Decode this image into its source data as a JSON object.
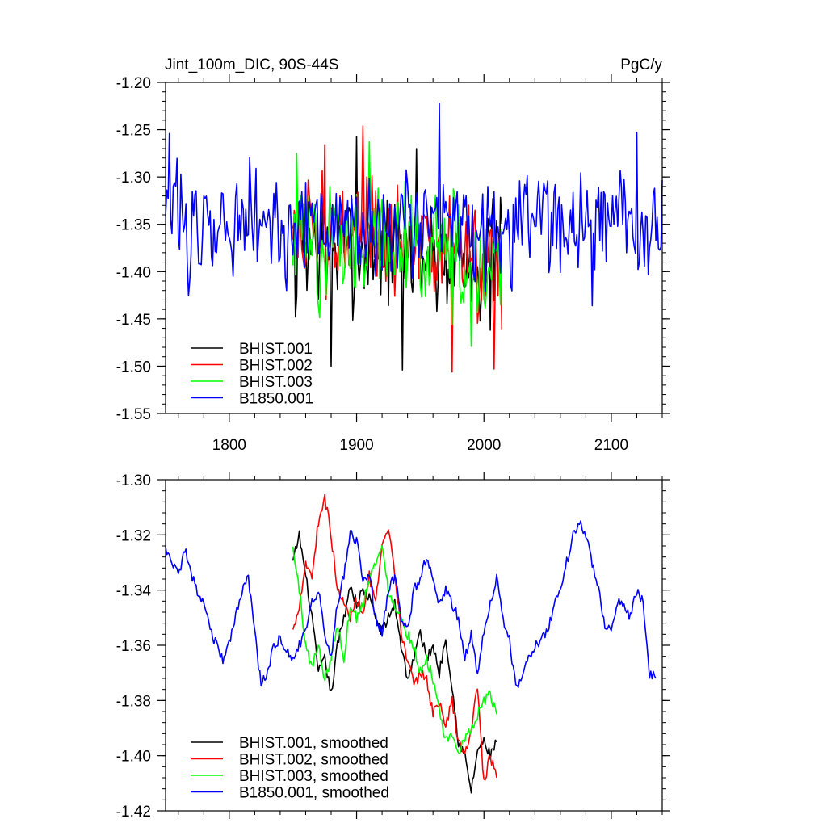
{
  "chart_data": [
    {
      "type": "line",
      "title": "Jint_100m_DIC, 90S-44S",
      "units": "PgC/y",
      "xlim": [
        1750,
        2140
      ],
      "ylim": [
        -1.55,
        -1.2
      ],
      "xticks": [
        1800,
        1900,
        2000,
        2100
      ],
      "xtick_labels": [
        "1800",
        "1900",
        "2000",
        "2100"
      ],
      "yticks": [
        -1.55,
        -1.5,
        -1.45,
        -1.4,
        -1.35,
        -1.3,
        -1.25,
        -1.2
      ],
      "ytick_labels": [
        "-1.55",
        "-1.50",
        "-1.45",
        "-1.40",
        "-1.35",
        "-1.30",
        "-1.25",
        "-1.20"
      ],
      "legend_position": "bottom-left",
      "series": [
        {
          "name": "BHIST.001",
          "color": "#000000",
          "x_start": 1850,
          "x_end": 2014,
          "mean": -1.37,
          "amplitude": 0.04,
          "trend": -0.02,
          "extremes": [
            [
              1852,
              -1.448
            ],
            [
              1880,
              -1.5
            ],
            [
              1900,
              -1.257
            ],
            [
              1936,
              -1.504
            ],
            [
              1947,
              -1.27
            ],
            [
              2005,
              -1.462
            ]
          ]
        },
        {
          "name": "BHIST.002",
          "color": "#ff0000",
          "x_start": 1850,
          "x_end": 2014,
          "mean": -1.36,
          "amplitude": 0.04,
          "trend": -0.025,
          "extremes": [
            [
              1875,
              -1.266
            ],
            [
              1905,
              -1.246
            ],
            [
              1975,
              -1.506
            ],
            [
              2008,
              -1.503
            ],
            [
              2014,
              -1.461
            ]
          ]
        },
        {
          "name": "BHIST.003",
          "color": "#00ff00",
          "x_start": 1850,
          "x_end": 2014,
          "mean": -1.365,
          "amplitude": 0.04,
          "trend": -0.02,
          "extremes": [
            [
              1853,
              -1.275
            ],
            [
              1910,
              -1.263
            ],
            [
              1975,
              -1.456
            ],
            [
              1990,
              -1.479
            ]
          ]
        },
        {
          "name": "B1850.001",
          "color": "#0000ff",
          "x_start": 1750,
          "x_end": 2140,
          "mean": -1.35,
          "amplitude": 0.035,
          "trend": 0.0,
          "extremes": [
            [
              1753,
              -1.254
            ],
            [
              1965,
              -1.222
            ],
            [
              2120,
              -1.253
            ],
            [
              1845,
              -1.42
            ],
            [
              2085,
              -1.436
            ]
          ]
        }
      ]
    },
    {
      "type": "line",
      "title": "",
      "xlim": [
        1750,
        2140
      ],
      "ylim": [
        -1.42,
        -1.3
      ],
      "xticks": [
        1800,
        1900,
        2000,
        2100
      ],
      "yticks": [
        -1.42,
        -1.4,
        -1.38,
        -1.36,
        -1.34,
        -1.32,
        -1.3
      ],
      "ytick_labels": [
        "-1.42",
        "-1.40",
        "-1.38",
        "-1.36",
        "-1.34",
        "-1.32",
        "-1.30"
      ],
      "legend_position": "bottom-left",
      "series": [
        {
          "name": "BHIST.001, smoothed",
          "color": "#000000",
          "x": [
            1850,
            1855,
            1860,
            1865,
            1870,
            1875,
            1880,
            1885,
            1890,
            1895,
            1900,
            1905,
            1910,
            1915,
            1920,
            1925,
            1930,
            1935,
            1940,
            1945,
            1950,
            1955,
            1960,
            1965,
            1970,
            1975,
            1980,
            1985,
            1990,
            1995,
            2000,
            2005,
            2010
          ],
          "y": [
            -1.33,
            -1.32,
            -1.335,
            -1.35,
            -1.37,
            -1.365,
            -1.378,
            -1.36,
            -1.35,
            -1.338,
            -1.345,
            -1.34,
            -1.343,
            -1.35,
            -1.355,
            -1.35,
            -1.345,
            -1.36,
            -1.372,
            -1.365,
            -1.355,
            -1.365,
            -1.36,
            -1.37,
            -1.357,
            -1.375,
            -1.395,
            -1.4,
            -1.413,
            -1.398,
            -1.395,
            -1.4,
            -1.395
          ]
        },
        {
          "name": "BHIST.002, smoothed",
          "color": "#ff0000",
          "x": [
            1850,
            1855,
            1860,
            1865,
            1870,
            1875,
            1880,
            1885,
            1890,
            1895,
            1900,
            1905,
            1910,
            1915,
            1920,
            1925,
            1930,
            1935,
            1940,
            1945,
            1950,
            1955,
            1960,
            1965,
            1970,
            1975,
            1980,
            1985,
            1990,
            1995,
            2000,
            2005,
            2010
          ],
          "y": [
            -1.355,
            -1.345,
            -1.33,
            -1.335,
            -1.315,
            -1.306,
            -1.32,
            -1.34,
            -1.345,
            -1.35,
            -1.343,
            -1.348,
            -1.335,
            -1.345,
            -1.325,
            -1.318,
            -1.335,
            -1.355,
            -1.365,
            -1.375,
            -1.37,
            -1.372,
            -1.385,
            -1.38,
            -1.39,
            -1.38,
            -1.395,
            -1.4,
            -1.39,
            -1.375,
            -1.41,
            -1.4,
            -1.408
          ]
        },
        {
          "name": "BHIST.003, smoothed",
          "color": "#00ff00",
          "x": [
            1850,
            1855,
            1860,
            1865,
            1870,
            1875,
            1880,
            1885,
            1890,
            1895,
            1900,
            1905,
            1910,
            1915,
            1920,
            1925,
            1930,
            1935,
            1940,
            1945,
            1950,
            1955,
            1960,
            1965,
            1970,
            1975,
            1980,
            1985,
            1990,
            1995,
            2000,
            2005,
            2010
          ],
          "y": [
            -1.325,
            -1.34,
            -1.36,
            -1.368,
            -1.36,
            -1.372,
            -1.365,
            -1.352,
            -1.365,
            -1.345,
            -1.35,
            -1.345,
            -1.335,
            -1.33,
            -1.325,
            -1.34,
            -1.345,
            -1.35,
            -1.356,
            -1.36,
            -1.37,
            -1.365,
            -1.372,
            -1.385,
            -1.395,
            -1.393,
            -1.398,
            -1.395,
            -1.39,
            -1.385,
            -1.38,
            -1.378,
            -1.385
          ]
        },
        {
          "name": "B1850.001, smoothed",
          "color": "#0000ff",
          "x": [
            1750,
            1755,
            1760,
            1765,
            1770,
            1775,
            1780,
            1785,
            1790,
            1795,
            1800,
            1805,
            1810,
            1815,
            1820,
            1825,
            1830,
            1835,
            1840,
            1845,
            1850,
            1855,
            1860,
            1865,
            1870,
            1875,
            1880,
            1885,
            1890,
            1895,
            1900,
            1905,
            1910,
            1915,
            1920,
            1925,
            1930,
            1935,
            1940,
            1945,
            1950,
            1955,
            1960,
            1965,
            1970,
            1975,
            1980,
            1985,
            1990,
            1995,
            2000,
            2005,
            2010,
            2015,
            2020,
            2025,
            2030,
            2035,
            2040,
            2045,
            2050,
            2055,
            2060,
            2065,
            2070,
            2075,
            2080,
            2085,
            2090,
            2095,
            2100,
            2105,
            2110,
            2115,
            2120,
            2125,
            2130,
            2135
          ],
          "y": [
            -1.325,
            -1.33,
            -1.335,
            -1.325,
            -1.335,
            -1.34,
            -1.345,
            -1.355,
            -1.36,
            -1.365,
            -1.36,
            -1.35,
            -1.34,
            -1.335,
            -1.355,
            -1.375,
            -1.37,
            -1.36,
            -1.358,
            -1.362,
            -1.365,
            -1.36,
            -1.355,
            -1.345,
            -1.34,
            -1.355,
            -1.365,
            -1.345,
            -1.335,
            -1.32,
            -1.322,
            -1.335,
            -1.335,
            -1.35,
            -1.355,
            -1.34,
            -1.335,
            -1.35,
            -1.355,
            -1.34,
            -1.335,
            -1.328,
            -1.335,
            -1.345,
            -1.34,
            -1.345,
            -1.35,
            -1.365,
            -1.355,
            -1.37,
            -1.355,
            -1.345,
            -1.335,
            -1.35,
            -1.358,
            -1.375,
            -1.372,
            -1.365,
            -1.36,
            -1.358,
            -1.355,
            -1.345,
            -1.34,
            -1.33,
            -1.32,
            -1.315,
            -1.32,
            -1.33,
            -1.34,
            -1.352,
            -1.355,
            -1.345,
            -1.345,
            -1.35,
            -1.34,
            -1.345,
            -1.37,
            -1.372
          ]
        }
      ]
    }
  ]
}
